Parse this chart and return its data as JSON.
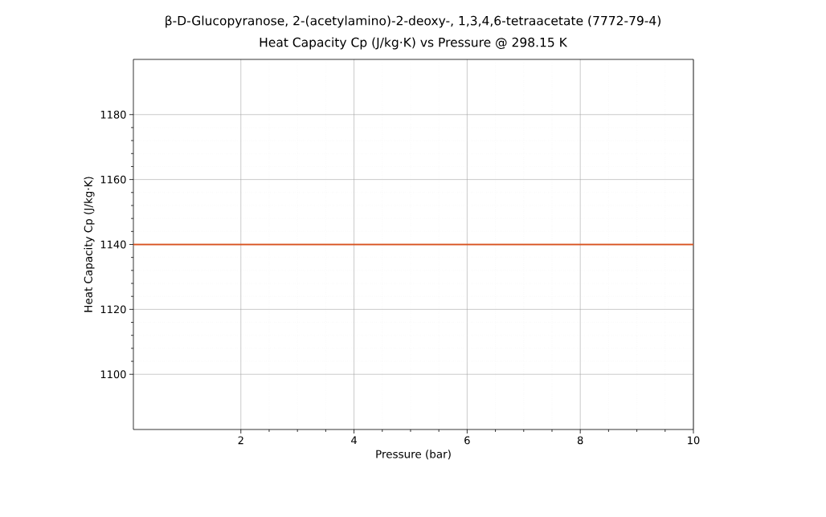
{
  "chart_data": {
    "type": "line",
    "title": "β-D-Glucopyranose, 2-(acetylamino)-2-deoxy-, 1,3,4,6-tetraacetate (7772-79-4)",
    "subtitle": "Heat Capacity Cp (J/kg·K) vs Pressure @ 298.15 K",
    "xlabel": "Pressure (bar)",
    "ylabel": "Heat Capacity Cp (J/kg·K)",
    "x": [
      0.1,
      10
    ],
    "series": [
      {
        "color": "#d8521f",
        "values": [
          1140,
          1140
        ]
      }
    ],
    "xlim": [
      0.1,
      10
    ],
    "ylim": [
      1083,
      1197
    ],
    "xticks": [
      2,
      4,
      6,
      8,
      10
    ],
    "yticks": [
      1100,
      1120,
      1140,
      1160,
      1180
    ],
    "grid": true,
    "marker": "none",
    "line_style": "solid"
  }
}
